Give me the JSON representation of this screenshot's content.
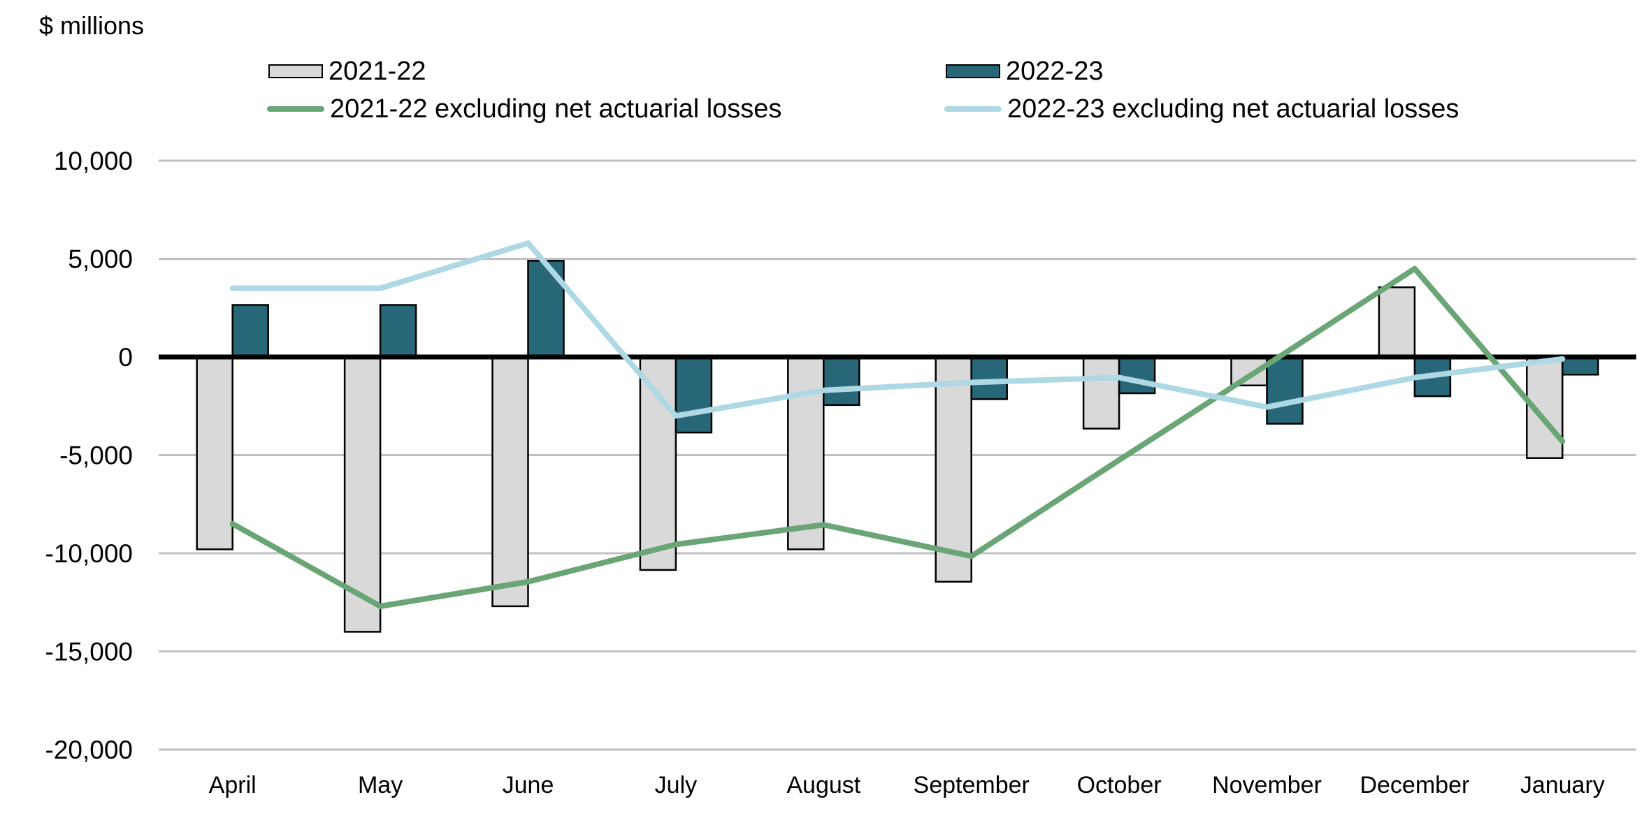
{
  "chart_data": {
    "type": "bar",
    "title": "",
    "ylabel": "$ millions",
    "xlabel": "",
    "ylim": [
      -20000,
      10000
    ],
    "yticks": [
      10000,
      5000,
      0,
      -5000,
      -10000,
      -15000,
      -20000
    ],
    "ytick_labels": [
      "10,000",
      "5,000",
      "0",
      "-5,000",
      "-10,000",
      "-15,000",
      "-20,000"
    ],
    "grid": true,
    "legend_position": "top",
    "categories": [
      "April",
      "May",
      "June",
      "July",
      "August",
      "September",
      "October",
      "November",
      "December",
      "January"
    ],
    "series": [
      {
        "name": "2021-22",
        "kind": "bar",
        "color": "#d9d9d9",
        "values": [
          -9800,
          -14000,
          -12700,
          -10850,
          -9800,
          -11450,
          -3650,
          -1450,
          3550,
          -5150
        ]
      },
      {
        "name": "2022-23",
        "kind": "bar",
        "color": "#286777",
        "values": [
          2650,
          2650,
          4900,
          -3850,
          -2450,
          -2150,
          -1850,
          -3400,
          -2000,
          -900
        ]
      },
      {
        "name": "2021-22 excluding net actuarial losses",
        "kind": "line",
        "color": "#6aa576",
        "values": [
          -8500,
          -12700,
          -11450,
          -9550,
          -8550,
          -10150,
          -5250,
          -400,
          4500,
          -4300
        ]
      },
      {
        "name": "2022-23 excluding net actuarial losses",
        "kind": "line",
        "color": "#add8e4",
        "values": [
          3500,
          3500,
          5800,
          -3000,
          -1700,
          -1300,
          -1050,
          -2550,
          -1050,
          -100
        ]
      }
    ]
  },
  "colors": {
    "gridline": "#c0c0c0",
    "zero_axis": "#000000",
    "bar_outline": "#000000"
  }
}
